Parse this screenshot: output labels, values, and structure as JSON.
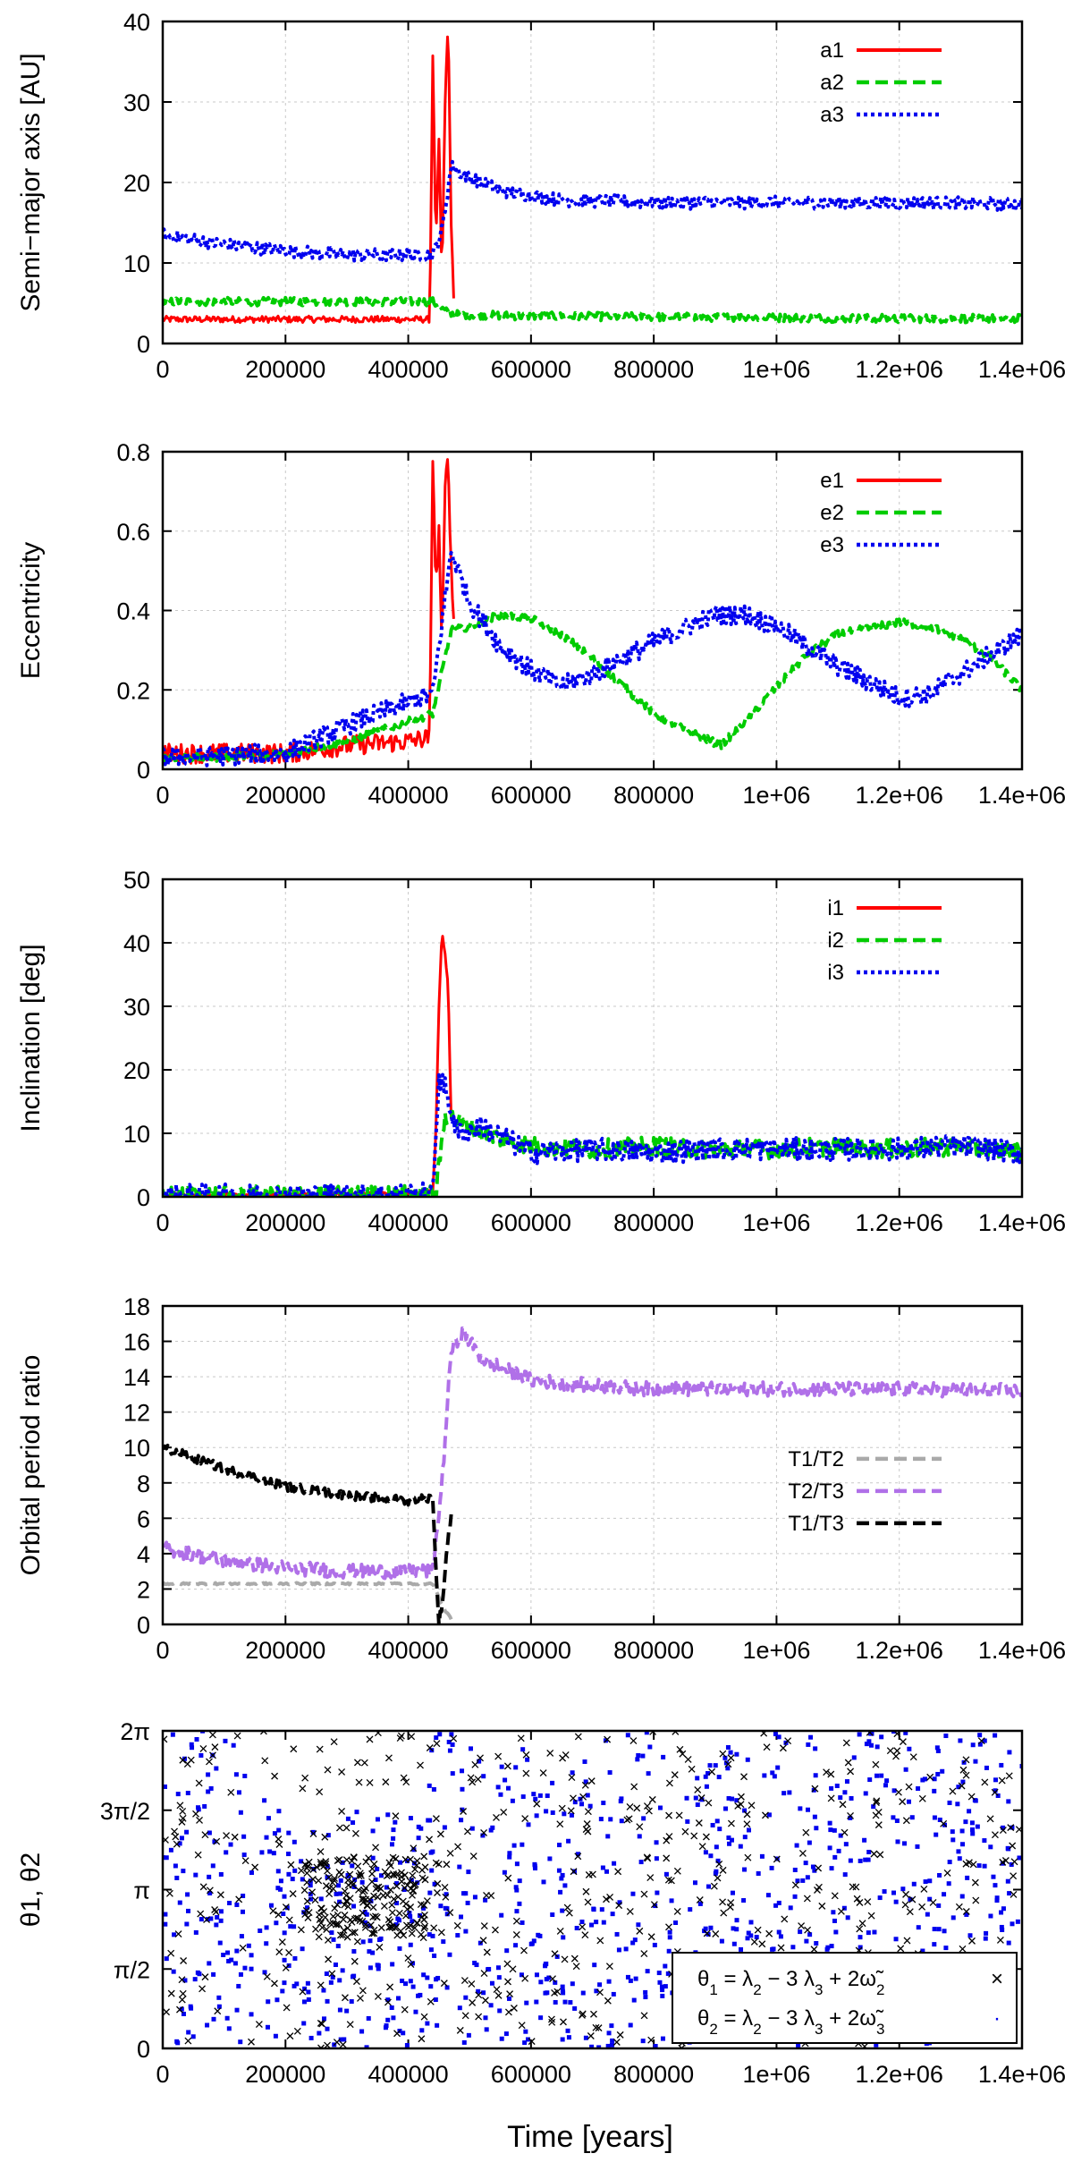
{
  "figure": {
    "xlabel": "Time [years]"
  },
  "chart_data": [
    {
      "type": "line",
      "ylabel": "Semi−major axis [AU]",
      "xlim": [
        0,
        1400000
      ],
      "ylim": [
        0,
        40
      ],
      "xticks": [
        0,
        200000,
        400000,
        600000,
        800000,
        1000000,
        1200000,
        1400000
      ],
      "xtick_labels": [
        "0",
        "200000",
        "400000",
        "600000",
        "800000",
        "1e+06",
        "1.2e+06",
        "1.4e+06"
      ],
      "yticks": [
        0,
        10,
        20,
        30,
        40
      ],
      "ytick_labels": [
        "0",
        "10",
        "20",
        "30",
        "40"
      ],
      "grid": true,
      "legend": "top-right",
      "series": [
        {
          "name": "a1",
          "color": "#ff0000",
          "style": "solid",
          "x": [
            0,
            100000,
            200000,
            300000,
            400000,
            435000,
            440000,
            445000,
            450000,
            455000,
            460000,
            465000,
            470000,
            475000
          ],
          "y": [
            3,
            3,
            3,
            3,
            3,
            3,
            36,
            12,
            25,
            8,
            30,
            40,
            15,
            3
          ],
          "noise": 0.4
        },
        {
          "name": "a2",
          "color": "#00cc00",
          "style": "dashed",
          "x": [
            0,
            200000,
            400000,
            440000,
            460000,
            480000,
            600000,
            800000,
            1000000,
            1200000,
            1400000
          ],
          "y": [
            5.2,
            5.2,
            5.2,
            5.2,
            4.0,
            3.6,
            3.4,
            3.3,
            3.2,
            3.1,
            3.1
          ],
          "noise": 0.5
        },
        {
          "name": "a3",
          "color": "#0000ee",
          "style": "dotted",
          "x": [
            0,
            100000,
            200000,
            300000,
            400000,
            440000,
            455000,
            470000,
            490000,
            550000,
            650000,
            800000,
            1000000,
            1200000,
            1400000
          ],
          "y": [
            13.5,
            12.3,
            11.5,
            11.0,
            11.0,
            11.0,
            14.0,
            22.0,
            21.0,
            19.0,
            17.8,
            17.5,
            17.5,
            17.5,
            17.3
          ],
          "noise": 0.8
        }
      ]
    },
    {
      "type": "line",
      "ylabel": "Eccentricity",
      "xlim": [
        0,
        1400000
      ],
      "ylim": [
        0,
        0.8
      ],
      "xticks": [
        0,
        200000,
        400000,
        600000,
        800000,
        1000000,
        1200000,
        1400000
      ],
      "xtick_labels": [
        "0",
        "200000",
        "400000",
        "600000",
        "800000",
        "1e+06",
        "1.2e+06",
        "1.4e+06"
      ],
      "yticks": [
        0,
        0.2,
        0.4,
        0.6,
        0.8
      ],
      "ytick_labels": [
        "0",
        "0.2",
        "0.4",
        "0.6",
        "0.8"
      ],
      "grid": true,
      "legend": "top-right",
      "series": [
        {
          "name": "e1",
          "color": "#ff0000",
          "style": "solid",
          "x": [
            0,
            100000,
            200000,
            250000,
            300000,
            400000,
            435000,
            440000,
            445000,
            450000,
            455000,
            460000,
            465000,
            470000,
            475000
          ],
          "y": [
            0.04,
            0.04,
            0.04,
            0.05,
            0.06,
            0.07,
            0.08,
            0.8,
            0.45,
            0.6,
            0.3,
            0.7,
            0.8,
            0.5,
            0.35
          ],
          "noise": 0.025
        },
        {
          "name": "e2",
          "color": "#00cc00",
          "style": "dashed",
          "x": [
            0,
            100000,
            200000,
            300000,
            400000,
            440000,
            470000,
            500000,
            550000,
            600000,
            650000,
            700000,
            800000,
            850000,
            910000,
            960000,
            1050000,
            1100000,
            1200000,
            1250000,
            1300000,
            1350000,
            1400000
          ],
          "y": [
            0.03,
            0.03,
            0.04,
            0.07,
            0.12,
            0.14,
            0.35,
            0.36,
            0.39,
            0.38,
            0.34,
            0.28,
            0.14,
            0.1,
            0.06,
            0.14,
            0.29,
            0.34,
            0.37,
            0.36,
            0.33,
            0.28,
            0.2
          ],
          "noise": 0.01
        },
        {
          "name": "e3",
          "color": "#0000ee",
          "style": "dotted",
          "x": [
            0,
            100000,
            200000,
            300000,
            400000,
            440000,
            470000,
            500000,
            550000,
            600000,
            650000,
            700000,
            800000,
            900000,
            950000,
            1000000,
            1100000,
            1200000,
            1250000,
            1300000,
            1400000
          ],
          "y": [
            0.03,
            0.035,
            0.04,
            0.11,
            0.17,
            0.19,
            0.55,
            0.42,
            0.31,
            0.25,
            0.21,
            0.24,
            0.32,
            0.39,
            0.39,
            0.36,
            0.26,
            0.18,
            0.19,
            0.24,
            0.34
          ],
          "noise": 0.025
        }
      ]
    },
    {
      "type": "line",
      "ylabel": "Inclination [deg]",
      "xlim": [
        0,
        1400000
      ],
      "ylim": [
        0,
        50
      ],
      "xticks": [
        0,
        200000,
        400000,
        600000,
        800000,
        1000000,
        1200000,
        1400000
      ],
      "xtick_labels": [
        "0",
        "200000",
        "400000",
        "600000",
        "800000",
        "1e+06",
        "1.2e+06",
        "1.4e+06"
      ],
      "yticks": [
        0,
        10,
        20,
        30,
        40,
        50
      ],
      "ytick_labels": [
        "0",
        "10",
        "20",
        "30",
        "40",
        "50"
      ],
      "grid": true,
      "legend": "top-right",
      "series": [
        {
          "name": "i1",
          "color": "#ff0000",
          "style": "solid",
          "x": [
            0,
            200000,
            400000,
            440000,
            445000,
            450000,
            455000,
            460000,
            465000,
            470000
          ],
          "y": [
            0.3,
            0.3,
            0.5,
            1.0,
            10.0,
            30.0,
            42.0,
            38.0,
            33.0,
            12.0
          ],
          "noise": 0.3
        },
        {
          "name": "i2",
          "color": "#00cc00",
          "style": "dashed",
          "x": [
            0,
            200000,
            400000,
            445000,
            460000,
            480000,
            520000,
            600000,
            700000,
            800000,
            900000,
            1000000,
            1100000,
            1200000,
            1300000,
            1400000
          ],
          "y": [
            0.2,
            0.2,
            0.3,
            0.5,
            13.0,
            12.0,
            10.0,
            8.0,
            7.5,
            8.0,
            7.5,
            7.5,
            8.0,
            7.5,
            8.0,
            7.0
          ],
          "noise": 1.5
        },
        {
          "name": "i3",
          "color": "#0000ee",
          "style": "dotted",
          "x": [
            0,
            200000,
            400000,
            440000,
            450000,
            460000,
            480000,
            520000,
            600000,
            700000,
            800000,
            900000,
            1000000,
            1100000,
            1200000,
            1300000,
            1400000
          ],
          "y": [
            0.2,
            0.2,
            0.3,
            0.5,
            19.0,
            17.0,
            10.0,
            11.0,
            7.0,
            7.5,
            7.0,
            7.5,
            7.5,
            7.5,
            7.5,
            8.0,
            7.0
          ],
          "noise": 1.8
        }
      ]
    },
    {
      "type": "line",
      "ylabel": "Orbital period ratio",
      "xlim": [
        0,
        1400000
      ],
      "ylim": [
        0,
        18
      ],
      "xticks": [
        0,
        200000,
        400000,
        600000,
        800000,
        1000000,
        1200000,
        1400000
      ],
      "xtick_labels": [
        "0",
        "200000",
        "400000",
        "600000",
        "800000",
        "1e+06",
        "1.2e+06",
        "1.4e+06"
      ],
      "yticks": [
        0,
        2,
        4,
        6,
        8,
        10,
        12,
        14,
        16,
        18
      ],
      "ytick_labels": [
        "0",
        "2",
        "4",
        "6",
        "8",
        "10",
        "12",
        "14",
        "16",
        "18"
      ],
      "grid": true,
      "legend": "right",
      "series": [
        {
          "name": "T1/T2",
          "color": "#aaaaaa",
          "style": "dashed",
          "x": [
            0,
            200000,
            400000,
            440000,
            450000,
            460000,
            470000
          ],
          "y": [
            2.3,
            2.3,
            2.3,
            2.3,
            1.5,
            0.8,
            0.3
          ],
          "noise": 0.05
        },
        {
          "name": "T2/T3",
          "color": "#b070e8",
          "style": "dashed",
          "x": [
            0,
            100000,
            200000,
            300000,
            400000,
            440000,
            455000,
            470000,
            490000,
            520000,
            600000,
            700000,
            800000,
            1000000,
            1200000,
            1400000
          ],
          "y": [
            4.3,
            3.6,
            3.2,
            3.0,
            3.0,
            3.0,
            8.0,
            15.5,
            16.5,
            15.0,
            13.8,
            13.5,
            13.3,
            13.3,
            13.3,
            13.2
          ],
          "noise": 0.4
        },
        {
          "name": "T1/T3",
          "color": "#000000",
          "style": "dashed",
          "x": [
            0,
            100000,
            200000,
            300000,
            400000,
            440000,
            445000,
            450000,
            455000,
            460000,
            465000,
            470000
          ],
          "y": [
            10.0,
            8.8,
            7.8,
            7.3,
            7.0,
            7.2,
            3.0,
            0.2,
            1.0,
            3.0,
            5.0,
            6.0
          ],
          "noise": 0.25
        }
      ]
    },
    {
      "type": "scatter",
      "ylabel": "θ1, θ2",
      "xlim": [
        0,
        1400000
      ],
      "ylim": [
        0,
        6.2832
      ],
      "xticks": [
        0,
        200000,
        400000,
        600000,
        800000,
        1000000,
        1200000,
        1400000
      ],
      "xtick_labels": [
        "0",
        "200000",
        "400000",
        "600000",
        "800000",
        "1e+06",
        "1.2e+06",
        "1.4e+06"
      ],
      "yticks": [
        0,
        1.5708,
        3.1416,
        4.7124,
        6.2832
      ],
      "ytick_labels": [
        "0",
        "π/2",
        "π",
        "3π/2",
        "2π"
      ],
      "grid": false,
      "legend": "bottom-right",
      "series": [
        {
          "name": "θ1 = λ2 − 3 λ3 + 2ω̃2",
          "color": "#000000",
          "marker": "x",
          "count": 700,
          "note_cluster": {
            "x": [
              230000,
              430000
            ],
            "y": [
              2.2,
              3.8
            ]
          }
        },
        {
          "name": "θ2 = λ2 − 3 λ3 + 2ω̃3",
          "color": "#0000ee",
          "marker": "point",
          "count": 900
        }
      ],
      "legend_entries": [
        {
          "lhs": "θ",
          "lhs_sub": "1",
          "eq": " = λ",
          "sub1": "2",
          "mid": " − 3 λ",
          "sub2": "3",
          "plus": " + 2ω̃",
          "sub3": "2",
          "marker": "×"
        },
        {
          "lhs": "θ",
          "lhs_sub": "2",
          "eq": " = λ",
          "sub1": "2",
          "mid": " − 3 λ",
          "sub2": "3",
          "plus": " + 2ω̃",
          "sub3": "3",
          "marker": "·"
        }
      ]
    }
  ]
}
